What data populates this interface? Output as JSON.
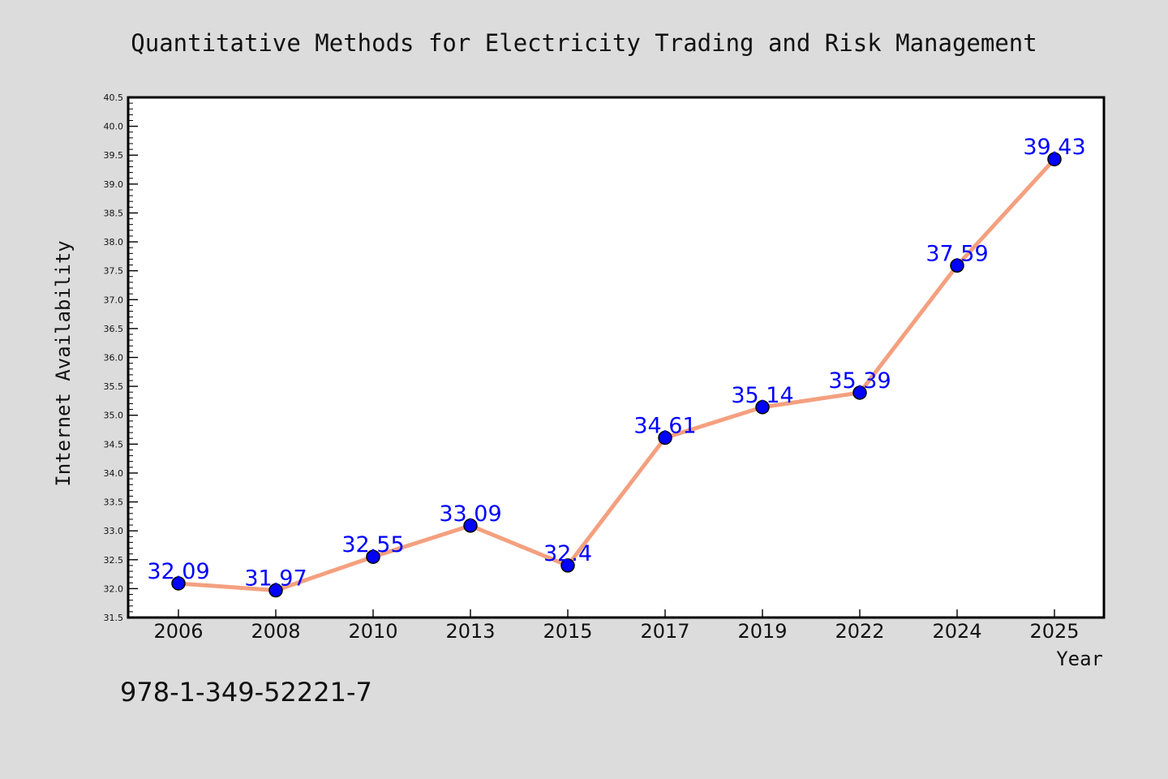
{
  "chart_data": {
    "type": "line",
    "title": "Quantitative Methods for Electricity Trading and Risk Management",
    "xlabel": "Year",
    "ylabel": "Internet Availability",
    "categories": [
      "2006",
      "2008",
      "2010",
      "2013",
      "2015",
      "2017",
      "2019",
      "2022",
      "2024",
      "2025"
    ],
    "series": [
      {
        "values": [
          32.09,
          31.97,
          32.55,
          33.09,
          32.4,
          34.61,
          35.14,
          35.39,
          37.59,
          39.43
        ],
        "data_labels": [
          "32.09",
          "31.97",
          "32.55",
          "33.09",
          "32.4",
          "34.61",
          "35.14",
          "35.39",
          "37.59",
          "39.43"
        ]
      }
    ],
    "ylim": [
      31.5,
      40.5
    ],
    "yticks": [
      "31.5",
      "32.0",
      "32.5",
      "33.0",
      "33.5",
      "34.0",
      "34.5",
      "35.0",
      "35.5",
      "36.0",
      "36.5",
      "37.0",
      "37.5",
      "38.0",
      "38.5",
      "39.0",
      "39.5",
      "40.0",
      "40.5"
    ],
    "grid": false,
    "legend": "none",
    "colors": {
      "background": "#dcdcdc",
      "plot_background": "#ffffff",
      "line": "#f4a07f",
      "marker": "#0000ff",
      "label": "#0000ff"
    }
  },
  "footer_text": "978-1-349-52221-7"
}
